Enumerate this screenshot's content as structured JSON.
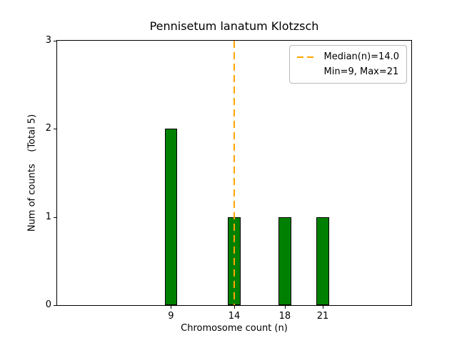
{
  "chart_data": {
    "type": "bar",
    "title": "Pennisetum lanatum Klotzsch",
    "xlabel": "Chromosome count (n)",
    "ylabel": "Num of counts    (Total 5)",
    "total": 5,
    "categories": [
      9,
      14,
      18,
      21
    ],
    "values": [
      2,
      1,
      1,
      1
    ],
    "xticks": [
      9,
      14,
      18,
      21
    ],
    "yticks": [
      0,
      1,
      2,
      3
    ],
    "xlim": [
      0,
      28
    ],
    "ylim": [
      0,
      3
    ],
    "grid": false,
    "bar_color": "#008000",
    "bar_edge_color": "#000000",
    "bar_width_units": 1.0,
    "median_line": {
      "x": 14,
      "color": "#FFA500",
      "style": "dashed",
      "label": "Median(n)=14.0"
    },
    "legend": {
      "position": "upper right",
      "entries": [
        {
          "label": "Median(n)=14.0",
          "handle": "dashed",
          "color": "#FFA500"
        },
        {
          "label": "Min=9, Max=21",
          "handle": "none",
          "color": "transparent"
        }
      ]
    }
  }
}
